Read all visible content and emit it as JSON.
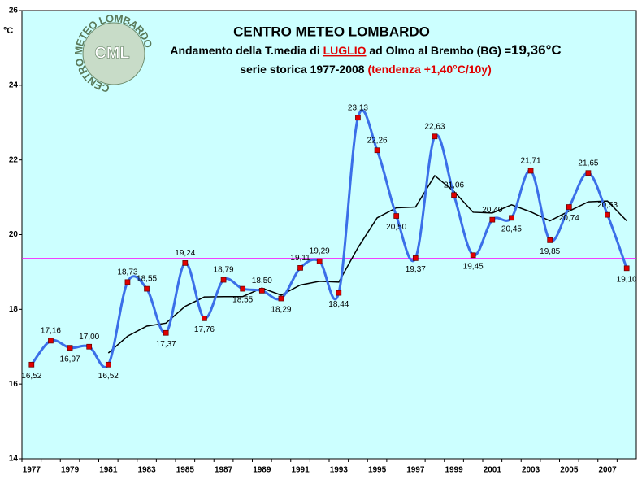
{
  "chart_data": {
    "type": "line",
    "title": "CENTRO METEO LOMBARDO",
    "subtitle_parts": [
      "Andamento della T.media di ",
      "LUGLIO",
      " ad Olmo al Brembo (BG) =",
      "19,36°C"
    ],
    "subtitle2_parts": [
      "serie storica 1977-2008 ",
      "(tendenza +1,40°C/10y)"
    ],
    "y_unit": "°C",
    "logo": {
      "center": "CML",
      "ring": "CENTRO METEO LOMBARDO"
    },
    "categories": [
      "1977",
      null,
      "1979",
      null,
      "1981",
      null,
      "1983",
      null,
      "1985",
      null,
      "1987",
      null,
      "1989",
      null,
      "1991",
      null,
      "1993",
      null,
      "1995",
      null,
      "1997",
      null,
      "1999",
      null,
      "2001",
      null,
      "2003",
      null,
      "2005",
      null,
      "2007",
      null
    ],
    "series": [
      {
        "color": "#3b6fe8",
        "values": [
          16.52,
          17.16,
          16.97,
          17.0,
          16.52,
          18.73,
          18.55,
          17.37,
          19.24,
          17.76,
          18.79,
          18.55,
          18.5,
          18.29,
          19.11,
          19.29,
          18.44,
          23.13,
          22.26,
          20.5,
          19.37,
          22.63,
          21.06,
          19.45,
          20.4,
          20.45,
          21.71,
          19.85,
          20.74,
          21.65,
          20.53,
          19.1
        ],
        "value_labels": [
          "16,52",
          "17,16",
          "16,97",
          "17,00",
          "16,52",
          "18,73",
          "18,55",
          "17,37",
          "19,24",
          "17,76",
          "18,79",
          "18,55",
          "18,50",
          "18,29",
          "19,11",
          "19,29",
          "18,44",
          "23,13",
          "22,26",
          "20,50",
          "19,37",
          "22,63",
          "21,06",
          "19,45",
          "20,40",
          "20,45",
          "21,71",
          "19,85",
          "20,74",
          "21,65",
          "20,53",
          "19,10"
        ],
        "marker_color": "#e00000"
      },
      {
        "color": "#000000",
        "values": [
          null,
          null,
          null,
          null,
          16.83,
          17.28,
          17.55,
          17.63,
          18.08,
          18.33,
          18.34,
          18.34,
          18.57,
          18.38,
          18.65,
          18.75,
          18.73,
          19.65,
          20.45,
          20.72,
          20.74,
          21.58,
          21.16,
          20.6,
          20.58,
          20.8,
          20.61,
          20.37,
          20.63,
          20.88,
          20.9,
          20.37
        ]
      }
    ],
    "mean_line": {
      "value": 19.36,
      "color": "#ff00ff"
    },
    "ylim": [
      14,
      26
    ],
    "yticks": [
      14,
      16,
      18,
      20,
      22,
      24,
      26
    ],
    "background": "#ccffff"
  }
}
